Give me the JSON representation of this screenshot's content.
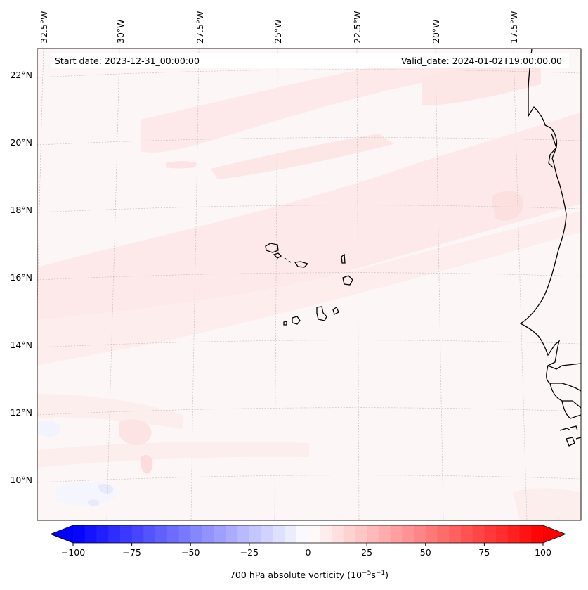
{
  "header": {
    "start_date": "Start date: 2023-12-31_00:00:00",
    "valid_date": "Valid_date: 2024-01-02T19:00:00.00"
  },
  "map": {
    "lon_labels": [
      "32.5°W",
      "30°W",
      "27.5°W",
      "25°W",
      "22.5°W",
      "20°W",
      "17.5°W"
    ],
    "lat_labels": [
      "22°N",
      "20°N",
      "18°N",
      "16°N",
      "14°N",
      "12°N",
      "10°N"
    ],
    "colors": {
      "coast": "#000000",
      "grid": "#bbbbbb"
    }
  },
  "colorbar": {
    "label": "700 hPa absolute vorticity (10",
    "label_exp1": "−5",
    "label_mid": "s",
    "label_exp2": "−1",
    "label_end": ")",
    "min": -100,
    "max": 100,
    "step": 5,
    "ticks": [
      "−100",
      "−75",
      "−50",
      "−25",
      "0",
      "25",
      "50",
      "75",
      "100"
    ],
    "tick_values": [
      -100,
      -75,
      -50,
      -25,
      0,
      25,
      50,
      75,
      100
    ],
    "colormap": "bwr",
    "neg_color": "#0000ff",
    "mid_color": "#ffffff",
    "pos_color": "#ff0000"
  }
}
